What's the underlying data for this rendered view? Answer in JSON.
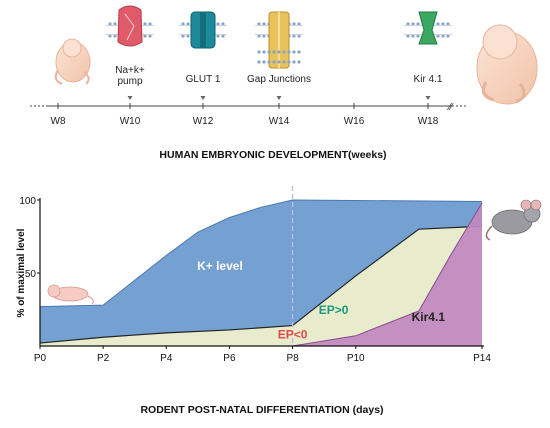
{
  "timeline": {
    "title": "HUMAN EMBRYONIC DEVELOPMENT(weeks)",
    "weeks": [
      "W8",
      "W10",
      "W12",
      "W14",
      "W16",
      "W18"
    ],
    "proteins": [
      {
        "label": "Na+k+\npump",
        "week": "W10",
        "icon": "na-k-pump-icon",
        "color": "#e05a6a"
      },
      {
        "label": "GLUT 1",
        "week": "W12",
        "icon": "glut1-icon",
        "color": "#1c8a9a"
      },
      {
        "label": "Gap Junctions",
        "week": "W14",
        "icon": "gap-junction-icon",
        "color": "#e8c25a"
      },
      {
        "label": "Kir 4.1",
        "week": "W18",
        "icon": "kir41-icon",
        "color": "#3aa860"
      }
    ]
  },
  "chart_data": {
    "type": "area",
    "title": "RODENT POST-NATAL DIFFERENTIATION (days)",
    "ylabel": "% of maximal level",
    "xlabel": "",
    "ylim": [
      0,
      100
    ],
    "yticks": [
      100,
      50
    ],
    "xlim": [
      0,
      14
    ],
    "xticks": [
      {
        "label": "P0",
        "x": 0
      },
      {
        "label": "P2",
        "x": 2
      },
      {
        "label": "P4",
        "x": 4
      },
      {
        "label": "P6",
        "x": 6
      },
      {
        "label": "P8",
        "x": 8
      },
      {
        "label": "P10",
        "x": 10
      },
      {
        "label": "P14",
        "x": 14
      }
    ],
    "marker_x": 8,
    "series": [
      {
        "name": "K+ level",
        "color": "#6e9bd0",
        "points": [
          [
            0,
            27
          ],
          [
            2,
            28
          ],
          [
            3,
            45
          ],
          [
            4,
            62
          ],
          [
            5,
            78
          ],
          [
            6,
            88
          ],
          [
            7,
            95
          ],
          [
            8,
            100
          ],
          [
            14,
            99
          ]
        ]
      },
      {
        "name": "EP<0",
        "color": "#e8eccd",
        "points": [
          [
            0,
            2
          ],
          [
            2,
            6
          ],
          [
            4,
            9
          ],
          [
            6,
            11
          ],
          [
            8,
            14
          ]
        ]
      },
      {
        "name": "EP>0",
        "color": "#e8eccd",
        "points": [
          [
            8,
            14
          ],
          [
            10,
            48
          ],
          [
            12,
            80
          ],
          [
            14,
            82
          ]
        ]
      },
      {
        "name": "Kir4.1",
        "color": "#c088c0",
        "points": [
          [
            8,
            0
          ],
          [
            10,
            7
          ],
          [
            12,
            24
          ],
          [
            13,
            62
          ],
          [
            14,
            98
          ]
        ]
      }
    ],
    "labels": [
      {
        "text": "K+ level",
        "x": 5.7,
        "y": 52,
        "color": "#ffffff"
      },
      {
        "text": "EP<0",
        "x": 8.0,
        "y": 5,
        "color": "#e04a4a"
      },
      {
        "text": "EP>0",
        "x": 9.3,
        "y": 22,
        "color": "#1a9a7a"
      },
      {
        "text": "Kir4.1",
        "x": 12.3,
        "y": 17,
        "color": "#222222"
      }
    ]
  }
}
